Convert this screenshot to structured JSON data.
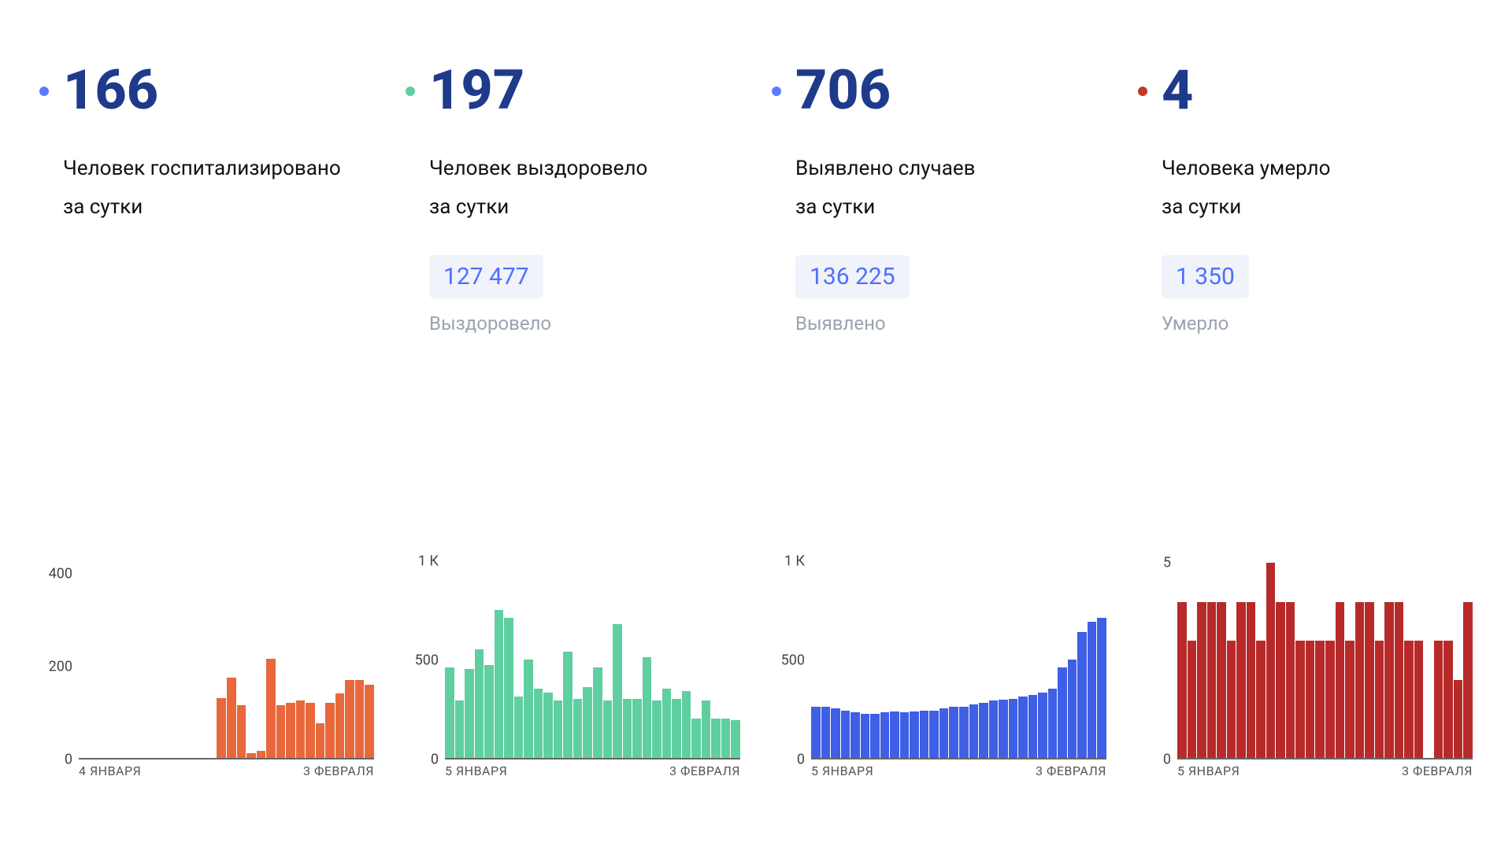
{
  "background_color": "#ffffff",
  "big_num_color": "#1e3a8a",
  "badge_bg": "#f0f3fa",
  "badge_text_color": "#4f6fff",
  "total_label_color": "#9aa3ad",
  "axis_text_color": "#555555",
  "baseline_color": "#666666",
  "cards": [
    {
      "id": "hospitalized",
      "dot_color": "#5b7cff",
      "value": "166",
      "desc_line1": "Человек госпитализировано",
      "desc_line2": "за сутки",
      "total": null,
      "total_label": null,
      "chart": {
        "type": "bar",
        "bar_color": "#e8683c",
        "ymax": 450,
        "yticks": [
          0,
          200,
          400
        ],
        "ytick_labels": [
          "0",
          "200",
          "400"
        ],
        "x_start_label": "4 ЯНВАРЯ",
        "x_end_label": "3 ФЕВРАЛЯ",
        "values": [
          0,
          0,
          0,
          0,
          0,
          0,
          0,
          0,
          0,
          0,
          0,
          0,
          0,
          0,
          130,
          175,
          115,
          10,
          15,
          215,
          115,
          120,
          125,
          120,
          75,
          120,
          140,
          170,
          170,
          160
        ]
      }
    },
    {
      "id": "recovered",
      "dot_color": "#5fcfa0",
      "value": "197",
      "desc_line1": "Человек выздоровело",
      "desc_line2": "за сутки",
      "total": "127 477",
      "total_label": "Выздоровело",
      "chart": {
        "type": "bar",
        "bar_color": "#5fcfa0",
        "ymax": 1050,
        "yticks": [
          0,
          500,
          1000
        ],
        "ytick_labels": [
          "0",
          "500",
          "1 К"
        ],
        "x_start_label": "5 ЯНВАРЯ",
        "x_end_label": "3 ФЕВРАЛЯ",
        "values": [
          460,
          290,
          450,
          550,
          470,
          750,
          710,
          310,
          500,
          350,
          330,
          290,
          540,
          300,
          360,
          460,
          290,
          680,
          300,
          300,
          510,
          290,
          350,
          300,
          340,
          200,
          290,
          200,
          200,
          190
        ]
      }
    },
    {
      "id": "detected",
      "dot_color": "#5b7cff",
      "value": "706",
      "desc_line1": "Выявлено случаев",
      "desc_line2": "за сутки",
      "total": "136 225",
      "total_label": "Выявлено",
      "chart": {
        "type": "bar",
        "bar_color": "#3f5fe6",
        "ymax": 1050,
        "yticks": [
          0,
          500,
          1000
        ],
        "ytick_labels": [
          "0",
          "500",
          "1 К"
        ],
        "x_start_label": "5 ЯНВАРЯ",
        "x_end_label": "3 ФЕВРАЛЯ",
        "values": [
          260,
          260,
          250,
          240,
          230,
          225,
          225,
          230,
          235,
          230,
          235,
          240,
          240,
          250,
          260,
          260,
          270,
          280,
          290,
          295,
          300,
          310,
          320,
          330,
          350,
          460,
          500,
          640,
          690,
          710
        ]
      }
    },
    {
      "id": "deaths",
      "dot_color": "#c0392b",
      "value": "4",
      "desc_line1": "Человека умерло",
      "desc_line2": "за сутки",
      "total": "1 350",
      "total_label": "Умерло",
      "chart": {
        "type": "bar",
        "bar_color": "#b82a2a",
        "ymax": 5.3,
        "yticks": [
          0,
          5
        ],
        "ytick_labels": [
          "0",
          "5"
        ],
        "x_start_label": "5 ЯНВАРЯ",
        "x_end_label": "3 ФЕВРАЛЯ",
        "values": [
          4,
          3,
          4,
          4,
          4,
          3,
          4,
          4,
          3,
          5,
          4,
          4,
          3,
          3,
          3,
          3,
          4,
          3,
          4,
          4,
          3,
          4,
          4,
          3,
          3,
          0,
          3,
          3,
          2,
          4
        ]
      }
    }
  ]
}
